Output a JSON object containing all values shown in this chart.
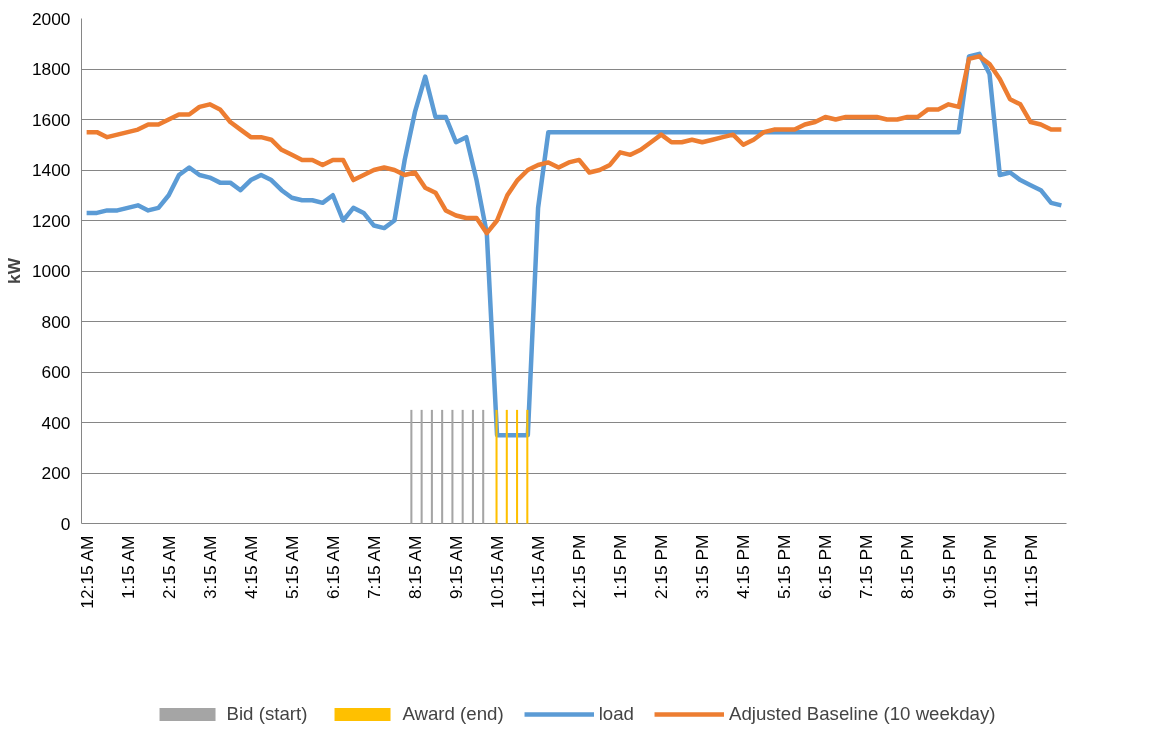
{
  "chart_data": {
    "type": "line",
    "ylabel": "kW",
    "categories": [
      "12:15 AM",
      null,
      null,
      null,
      "1:15 AM",
      null,
      null,
      null,
      "2:15 AM",
      null,
      null,
      null,
      "3:15 AM",
      null,
      null,
      null,
      "4:15 AM",
      null,
      null,
      null,
      "5:15 AM",
      null,
      null,
      null,
      "6:15 AM",
      null,
      null,
      null,
      "7:15 AM",
      null,
      null,
      null,
      "8:15 AM",
      null,
      null,
      null,
      "9:15 AM",
      null,
      null,
      null,
      "10:15 AM",
      null,
      null,
      null,
      "11:15 AM",
      null,
      null,
      null,
      "12:15 PM",
      null,
      null,
      null,
      "1:15 PM",
      null,
      null,
      null,
      "2:15 PM",
      null,
      null,
      null,
      "3:15 PM",
      null,
      null,
      null,
      "4:15 PM",
      null,
      null,
      null,
      "5:15 PM",
      null,
      null,
      null,
      "6:15 PM",
      null,
      null,
      null,
      "7:15 PM",
      null,
      null,
      null,
      "8:15 PM",
      null,
      null,
      null,
      "9:15 PM",
      null,
      null,
      null,
      "10:15 PM",
      null,
      null,
      null,
      "11:15 PM",
      null,
      null,
      null
    ],
    "series": [
      {
        "name": "Bid (start)",
        "type": "bar",
        "color": "#a5a5a5",
        "values": [
          null,
          null,
          null,
          null,
          null,
          null,
          null,
          null,
          null,
          null,
          null,
          null,
          null,
          null,
          null,
          null,
          null,
          null,
          null,
          null,
          null,
          null,
          null,
          null,
          null,
          null,
          null,
          null,
          null,
          null,
          null,
          null,
          450,
          450,
          450,
          450,
          450,
          450,
          450,
          450,
          null,
          null,
          null,
          null,
          null,
          null,
          null,
          null,
          null,
          null,
          null,
          null,
          null,
          null,
          null,
          null,
          null,
          null,
          null,
          null,
          null,
          null,
          null,
          null,
          null,
          null,
          null,
          null,
          null,
          null,
          null,
          null,
          null,
          null,
          null,
          null,
          null,
          null,
          null,
          null,
          null,
          null,
          null,
          null,
          null,
          null,
          null,
          null,
          null,
          null,
          null,
          null,
          null,
          null,
          null,
          null
        ]
      },
      {
        "name": "Award (end)",
        "type": "bar",
        "color": "#ffc000",
        "values": [
          null,
          null,
          null,
          null,
          null,
          null,
          null,
          null,
          null,
          null,
          null,
          null,
          null,
          null,
          null,
          null,
          null,
          null,
          null,
          null,
          null,
          null,
          null,
          null,
          null,
          null,
          null,
          null,
          null,
          null,
          null,
          null,
          null,
          null,
          null,
          null,
          null,
          null,
          null,
          null,
          450,
          450,
          450,
          450,
          null,
          null,
          null,
          null,
          null,
          null,
          null,
          null,
          null,
          null,
          null,
          null,
          null,
          null,
          null,
          null,
          null,
          null,
          null,
          null,
          null,
          null,
          null,
          null,
          null,
          null,
          null,
          null,
          null,
          null,
          null,
          null,
          null,
          null,
          null,
          null,
          null,
          null,
          null,
          null,
          null,
          null,
          null,
          null,
          null,
          null,
          null,
          null,
          null,
          null,
          null,
          null
        ]
      },
      {
        "name": "load",
        "color": "#5b9bd5",
        "values": [
          1230,
          1230,
          1240,
          1240,
          1250,
          1260,
          1240,
          1250,
          1300,
          1380,
          1410,
          1380,
          1370,
          1350,
          1350,
          1320,
          1360,
          1380,
          1360,
          1320,
          1290,
          1280,
          1280,
          1270,
          1300,
          1200,
          1250,
          1230,
          1180,
          1170,
          1200,
          1440,
          1630,
          1770,
          1610,
          1610,
          1510,
          1530,
          1360,
          1150,
          350,
          350,
          350,
          350,
          1250,
          1550,
          1550,
          1550,
          1550,
          1550,
          1550,
          1550,
          1550,
          1550,
          1550,
          1550,
          1550,
          1550,
          1550,
          1550,
          1550,
          1550,
          1550,
          1550,
          1550,
          1550,
          1550,
          1550,
          1550,
          1550,
          1550,
          1550,
          1550,
          1550,
          1550,
          1550,
          1550,
          1550,
          1550,
          1550,
          1550,
          1550,
          1550,
          1550,
          1550,
          1550,
          1850,
          1860,
          1780,
          1380,
          1390,
          1360,
          1340,
          1320,
          1270,
          1260
        ]
      },
      {
        "name": "Adjusted Baseline (10 weekday)",
        "color": "#ed7d31",
        "values": [
          1550,
          1550,
          1530,
          1540,
          1550,
          1560,
          1580,
          1580,
          1600,
          1620,
          1620,
          1650,
          1660,
          1640,
          1590,
          1560,
          1530,
          1530,
          1520,
          1480,
          1460,
          1440,
          1440,
          1420,
          1440,
          1440,
          1360,
          1380,
          1400,
          1410,
          1400,
          1380,
          1390,
          1330,
          1310,
          1240,
          1220,
          1210,
          1210,
          1150,
          1200,
          1300,
          1360,
          1400,
          1420,
          1430,
          1410,
          1430,
          1440,
          1390,
          1400,
          1420,
          1470,
          1460,
          1480,
          1510,
          1540,
          1510,
          1510,
          1520,
          1510,
          1520,
          1530,
          1540,
          1500,
          1520,
          1550,
          1560,
          1560,
          1560,
          1580,
          1590,
          1610,
          1600,
          1610,
          1610,
          1610,
          1610,
          1600,
          1600,
          1610,
          1610,
          1640,
          1640,
          1660,
          1650,
          1840,
          1850,
          1820,
          1760,
          1680,
          1660,
          1590,
          1580,
          1560,
          1560
        ]
      }
    ],
    "ylim": [
      0,
      2000
    ],
    "yticks": [
      0,
      200,
      400,
      600,
      800,
      1000,
      1200,
      1400,
      1600,
      1800,
      2000
    ],
    "grid": "y",
    "legend": "bottom",
    "marker": "none",
    "line_style": "solid"
  }
}
